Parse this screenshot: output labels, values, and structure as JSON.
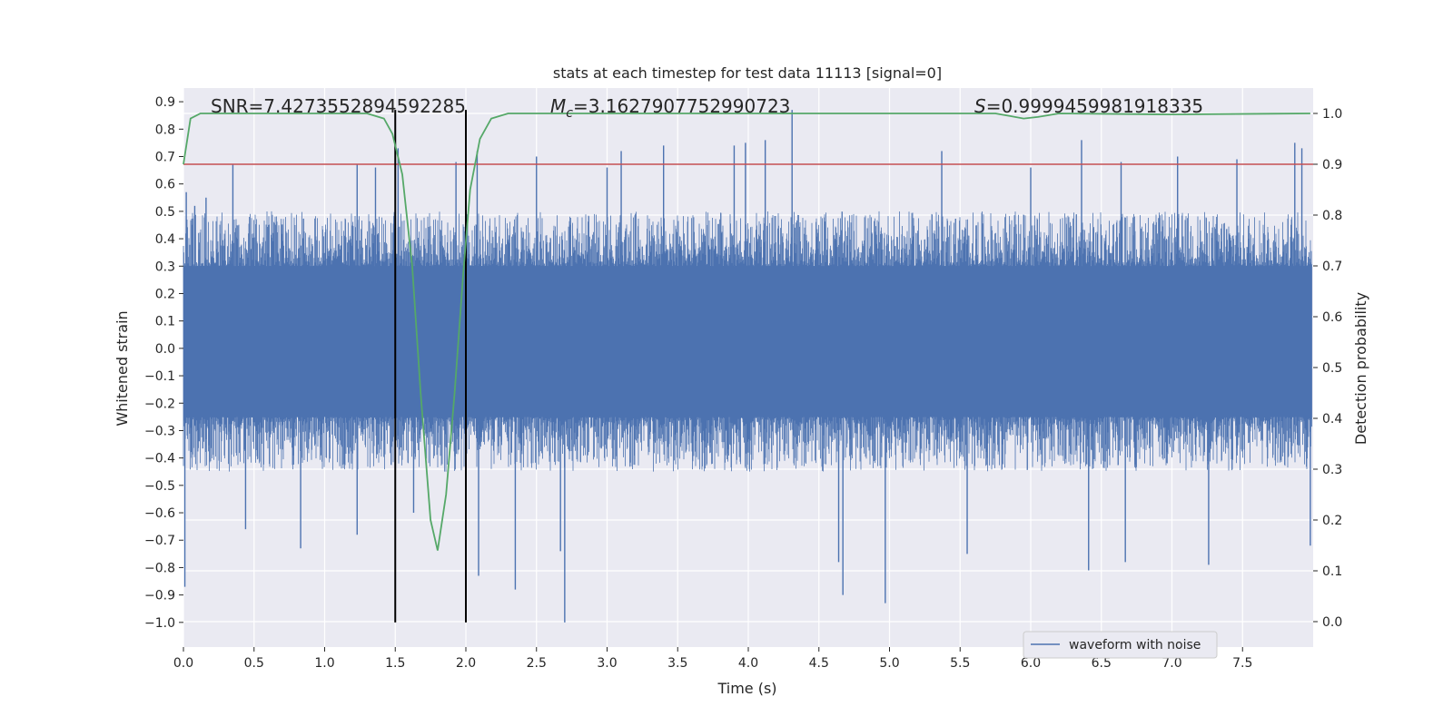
{
  "chart_data": {
    "type": "line",
    "title": "stats at each timestep for test data 11113 [signal=0]",
    "xlabel": "Time (s)",
    "ylabel": "Whitened strain",
    "y2label": "Detection probability",
    "xlim": [
      0.0,
      8.0
    ],
    "ylim": [
      -1.09,
      0.95
    ],
    "y2lim": [
      -0.05,
      1.05
    ],
    "xticks": [
      "0.0",
      "0.5",
      "1.0",
      "1.5",
      "2.0",
      "2.5",
      "3.0",
      "3.5",
      "4.0",
      "4.5",
      "5.0",
      "5.5",
      "6.0",
      "6.5",
      "7.0",
      "7.5"
    ],
    "yticks": [
      "0.9",
      "0.8",
      "0.7",
      "0.6",
      "0.5",
      "0.4",
      "0.3",
      "0.2",
      "0.1",
      "0.0",
      "−0.1",
      "−0.2",
      "−0.3",
      "−0.4",
      "−0.5",
      "−0.6",
      "−0.7",
      "−0.8",
      "−0.9",
      "−1.0"
    ],
    "y2ticks": [
      "1.0",
      "0.9",
      "0.8",
      "0.7",
      "0.6",
      "0.5",
      "0.4",
      "0.3",
      "0.2",
      "0.1",
      "0.0"
    ],
    "grid": true,
    "legend_position": "lower-right",
    "annotations": {
      "snr": "SNR=7.4273552894592285",
      "mc": "=3.1627907752990723",
      "mc_symbol": "M",
      "mc_subscript": "c",
      "s": "=0.9999459981918335",
      "s_symbol": "S"
    },
    "colors": {
      "waveform": "#4c72b0",
      "probability": "#55a868",
      "threshold": "#c44e52",
      "markers": "#000000",
      "background": "#eaeaf2"
    },
    "series": [
      {
        "name": "waveform with noise",
        "axis": "left",
        "style": "noise-band",
        "x_range": [
          0.0,
          7.99
        ],
        "core_band": [
          -0.25,
          0.3
        ],
        "typical_peak": [
          -0.45,
          0.5
        ],
        "spikes": [
          {
            "x": 0.01,
            "y": -0.87
          },
          {
            "x": 0.02,
            "y": 0.57
          },
          {
            "x": 0.08,
            "y": 0.52
          },
          {
            "x": 0.16,
            "y": 0.55
          },
          {
            "x": 0.35,
            "y": 0.67
          },
          {
            "x": 0.44,
            "y": -0.66
          },
          {
            "x": 0.83,
            "y": -0.73
          },
          {
            "x": 1.23,
            "y": 0.67
          },
          {
            "x": 1.23,
            "y": -0.68
          },
          {
            "x": 1.36,
            "y": 0.66
          },
          {
            "x": 1.52,
            "y": 0.73
          },
          {
            "x": 1.63,
            "y": -0.6
          },
          {
            "x": 1.93,
            "y": 0.68
          },
          {
            "x": 2.08,
            "y": 0.72
          },
          {
            "x": 2.09,
            "y": -0.83
          },
          {
            "x": 2.35,
            "y": -0.88
          },
          {
            "x": 2.5,
            "y": 0.7
          },
          {
            "x": 2.7,
            "y": -1.0
          },
          {
            "x": 2.67,
            "y": -0.74
          },
          {
            "x": 3.0,
            "y": 0.66
          },
          {
            "x": 3.1,
            "y": 0.72
          },
          {
            "x": 3.4,
            "y": 0.74
          },
          {
            "x": 3.9,
            "y": 0.74
          },
          {
            "x": 3.98,
            "y": 0.75
          },
          {
            "x": 4.12,
            "y": 0.76
          },
          {
            "x": 4.31,
            "y": 0.87
          },
          {
            "x": 4.64,
            "y": -0.78
          },
          {
            "x": 4.67,
            "y": -0.9
          },
          {
            "x": 4.97,
            "y": -0.93
          },
          {
            "x": 5.37,
            "y": 0.72
          },
          {
            "x": 5.55,
            "y": -0.75
          },
          {
            "x": 6.0,
            "y": 0.66
          },
          {
            "x": 6.36,
            "y": 0.76
          },
          {
            "x": 6.41,
            "y": -0.81
          },
          {
            "x": 6.64,
            "y": 0.68
          },
          {
            "x": 6.67,
            "y": -0.78
          },
          {
            "x": 7.04,
            "y": 0.7
          },
          {
            "x": 7.26,
            "y": -0.79
          },
          {
            "x": 7.46,
            "y": 0.69
          },
          {
            "x": 7.87,
            "y": 0.75
          },
          {
            "x": 7.92,
            "y": 0.73
          },
          {
            "x": 7.98,
            "y": -0.72
          }
        ]
      },
      {
        "name": "",
        "axis": "right",
        "style": "line",
        "x": [
          0.0,
          0.05,
          0.12,
          0.2,
          1.3,
          1.42,
          1.48,
          1.55,
          1.62,
          1.68,
          1.75,
          1.8,
          1.86,
          1.92,
          1.98,
          2.03,
          2.1,
          2.18,
          2.3,
          2.6,
          5.75,
          5.85,
          5.95,
          6.05,
          6.2,
          7.0,
          7.98
        ],
        "y": [
          0.9,
          0.99,
          1.0,
          1.0,
          1.0,
          0.99,
          0.96,
          0.88,
          0.7,
          0.45,
          0.2,
          0.14,
          0.25,
          0.45,
          0.68,
          0.85,
          0.95,
          0.99,
          1.0,
          1.0,
          1.0,
          0.995,
          0.99,
          0.993,
          1.0,
          0.998,
          1.0
        ]
      }
    ],
    "threshold": {
      "axis": "right",
      "y": 0.9
    },
    "marker_lines": [
      {
        "x": 1.5,
        "y_from": -1.0,
        "y_to": 0.87
      },
      {
        "x": 2.0,
        "y_from": -1.0,
        "y_to": 0.87
      }
    ]
  }
}
